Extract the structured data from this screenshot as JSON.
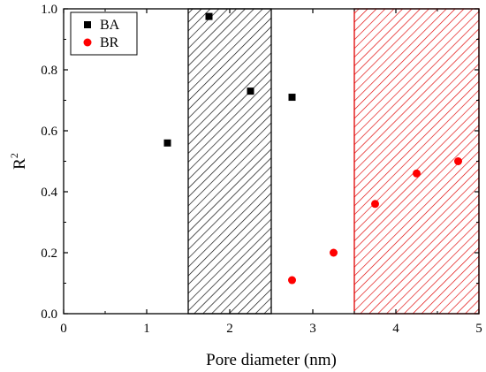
{
  "chart_data": {
    "type": "scatter",
    "xlabel": "Pore diameter (nm)",
    "ylabel": "R",
    "ylabel_superscript": "2",
    "xlim": [
      0,
      5
    ],
    "ylim": [
      0.0,
      1.0
    ],
    "xticks": [
      "0",
      "1",
      "2",
      "3",
      "4",
      "5"
    ],
    "yticks": [
      "0.0",
      "0.2",
      "0.4",
      "0.6",
      "0.8",
      "1.0"
    ],
    "grid": false,
    "legend_position": "top-left",
    "shaded_regions": [
      {
        "x": [
          1.5,
          2.5
        ],
        "color": "#000000",
        "hatch": "diagonal"
      },
      {
        "x": [
          3.5,
          5.0
        ],
        "color": "#e00000",
        "hatch": "diagonal"
      }
    ],
    "series": [
      {
        "name": "BA",
        "marker": "square",
        "color": "#000000",
        "x": [
          1.25,
          1.75,
          2.25,
          2.75
        ],
        "y": [
          0.56,
          0.975,
          0.73,
          0.71
        ]
      },
      {
        "name": "BR",
        "marker": "circle",
        "color": "#ff0000",
        "x": [
          2.75,
          3.25,
          3.75,
          4.25,
          4.75
        ],
        "y": [
          0.11,
          0.2,
          0.36,
          0.46,
          0.5
        ]
      }
    ]
  }
}
